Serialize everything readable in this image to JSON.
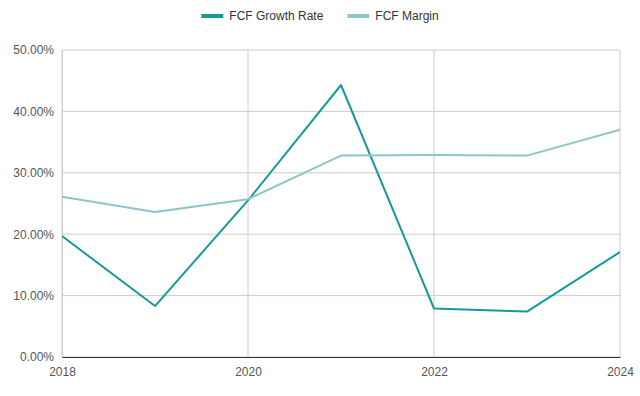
{
  "chart_data": {
    "type": "line",
    "x": [
      2018,
      2019,
      2020,
      2021,
      2022,
      2023,
      2024
    ],
    "series": [
      {
        "name": "FCF Growth Rate",
        "color": "#16999b",
        "values": [
          19.7,
          8.3,
          25.5,
          44.3,
          7.9,
          7.4,
          17.1
        ]
      },
      {
        "name": "FCF Margin",
        "color": "#8cc6c6",
        "values": [
          26.1,
          23.6,
          25.7,
          32.8,
          32.9,
          32.8,
          37.0
        ]
      }
    ],
    "xlim": [
      2018,
      2024
    ],
    "xticks": [
      2018,
      2020,
      2022,
      2024
    ],
    "ylim": [
      0,
      50
    ],
    "yticks": [
      {
        "value": 0,
        "label": "0.00%"
      },
      {
        "value": 10,
        "label": "10.00%"
      },
      {
        "value": 20,
        "label": "20.00%"
      },
      {
        "value": 30,
        "label": "30.00%"
      },
      {
        "value": 40,
        "label": "40.00%"
      },
      {
        "value": 50,
        "label": "50.00%"
      }
    ],
    "grid": true,
    "legend": "top"
  }
}
